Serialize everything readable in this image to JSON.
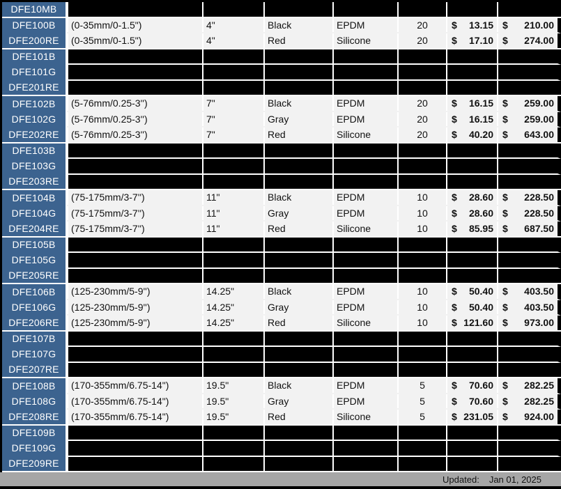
{
  "colors": {
    "code_column_blue": "#3C638F",
    "data_row_light": "#F2F2F2",
    "empty_row_black": "#000000",
    "grid_white": "#FFFFFF",
    "footer_gray": "#A6A6A6"
  },
  "table": {
    "currency": "$",
    "groups": [
      {
        "type": "empty",
        "codes": [
          "DFE10MB"
        ]
      },
      {
        "type": "data",
        "rows": [
          {
            "code": "DFE100B",
            "range": "(0-35mm/0-1.5\")",
            "length": "4\"",
            "color": "Black",
            "material": "EPDM",
            "qty": "20",
            "unit_price": "13.15",
            "case_price": "210.00"
          },
          {
            "code": "DFE200RE",
            "range": "(0-35mm/0-1.5\")",
            "length": "4\"",
            "color": "Red",
            "material": "Silicone",
            "qty": "20",
            "unit_price": "17.10",
            "case_price": "274.00"
          }
        ]
      },
      {
        "type": "empty",
        "codes": [
          "DFE101B",
          "DFE101G",
          "DFE201RE"
        ]
      },
      {
        "type": "data",
        "rows": [
          {
            "code": "DFE102B",
            "range": "(5-76mm/0.25-3'')",
            "length": "7\"",
            "color": "Black",
            "material": "EPDM",
            "qty": "20",
            "unit_price": "16.15",
            "case_price": "259.00"
          },
          {
            "code": "DFE102G",
            "range": "(5-76mm/0.25-3'')",
            "length": "7\"",
            "color": "Gray",
            "material": "EPDM",
            "qty": "20",
            "unit_price": "16.15",
            "case_price": "259.00"
          },
          {
            "code": "DFE202RE",
            "range": "(5-76mm/0.25-3'')",
            "length": "7\"",
            "color": "Red",
            "material": "Silicone",
            "qty": "20",
            "unit_price": "40.20",
            "case_price": "643.00"
          }
        ]
      },
      {
        "type": "empty",
        "codes": [
          "DFE103B",
          "DFE103G",
          "DFE203RE"
        ]
      },
      {
        "type": "data",
        "rows": [
          {
            "code": "DFE104B",
            "range": "(75-175mm/3-7'')",
            "length": "11\"",
            "color": "Black",
            "material": "EPDM",
            "qty": "10",
            "unit_price": "28.60",
            "case_price": "228.50"
          },
          {
            "code": "DFE104G",
            "range": "(75-175mm/3-7'')",
            "length": "11\"",
            "color": "Gray",
            "material": "EPDM",
            "qty": "10",
            "unit_price": "28.60",
            "case_price": "228.50"
          },
          {
            "code": "DFE204RE",
            "range": "(75-175mm/3-7'')",
            "length": "11\"",
            "color": "Red",
            "material": "Silicone",
            "qty": "10",
            "unit_price": "85.95",
            "case_price": "687.50"
          }
        ]
      },
      {
        "type": "empty",
        "codes": [
          "DFE105B",
          "DFE105G",
          "DFE205RE"
        ]
      },
      {
        "type": "data",
        "rows": [
          {
            "code": "DFE106B",
            "range": "(125-230mm/5-9'')",
            "length": "14.25\"",
            "color": "Black",
            "material": "EPDM",
            "qty": "10",
            "unit_price": "50.40",
            "case_price": "403.50"
          },
          {
            "code": "DFE106G",
            "range": "(125-230mm/5-9'')",
            "length": "14.25\"",
            "color": "Gray",
            "material": "EPDM",
            "qty": "10",
            "unit_price": "50.40",
            "case_price": "403.50"
          },
          {
            "code": "DFE206RE",
            "range": "(125-230mm/5-9'')",
            "length": "14.25\"",
            "color": "Red",
            "material": "Silicone",
            "qty": "10",
            "unit_price": "121.60",
            "case_price": "973.00"
          }
        ]
      },
      {
        "type": "empty",
        "codes": [
          "DFE107B",
          "DFE107G",
          "DFE207RE"
        ]
      },
      {
        "type": "data",
        "rows": [
          {
            "code": "DFE108B",
            "range": "(170-355mm/6.75-14\")",
            "length": "19.5\"",
            "color": "Black",
            "material": "EPDM",
            "qty": "5",
            "unit_price": "70.60",
            "case_price": "282.25"
          },
          {
            "code": "DFE108G",
            "range": "(170-355mm/6.75-14\")",
            "length": "19.5\"",
            "color": "Gray",
            "material": "EPDM",
            "qty": "5",
            "unit_price": "70.60",
            "case_price": "282.25"
          },
          {
            "code": "DFE208RE",
            "range": "(170-355mm/6.75-14\")",
            "length": "19.5\"",
            "color": "Red",
            "material": "Silicone",
            "qty": "5",
            "unit_price": "231.05",
            "case_price": "924.00"
          }
        ]
      },
      {
        "type": "empty",
        "codes": [
          "DFE109B",
          "DFE109G",
          "DFE209RE"
        ]
      }
    ]
  },
  "footer": {
    "updated_label": "Updated:",
    "updated_date": "Jan 01, 2025"
  }
}
